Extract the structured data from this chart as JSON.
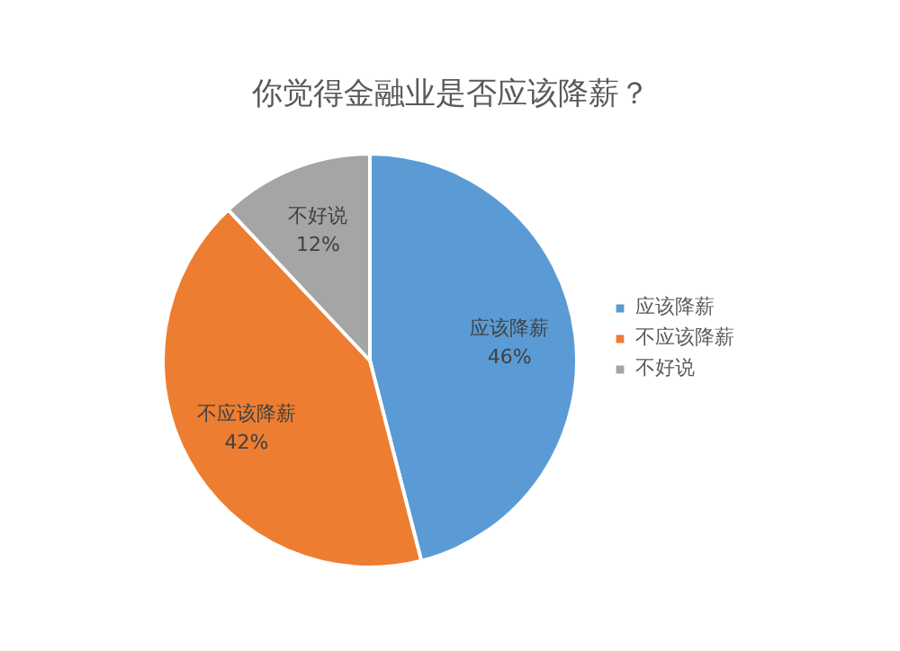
{
  "chart_data": {
    "type": "pie",
    "title": "你觉得金融业是否应该降薪？",
    "categories": [
      "应该降薪",
      "不应该降薪",
      "不好说"
    ],
    "values": [
      46,
      42,
      12
    ],
    "colors": [
      "#5b9bd5",
      "#ed7d31",
      "#a5a5a5"
    ],
    "value_labels": [
      "46%",
      "42%",
      "12%"
    ],
    "legend": "right"
  }
}
